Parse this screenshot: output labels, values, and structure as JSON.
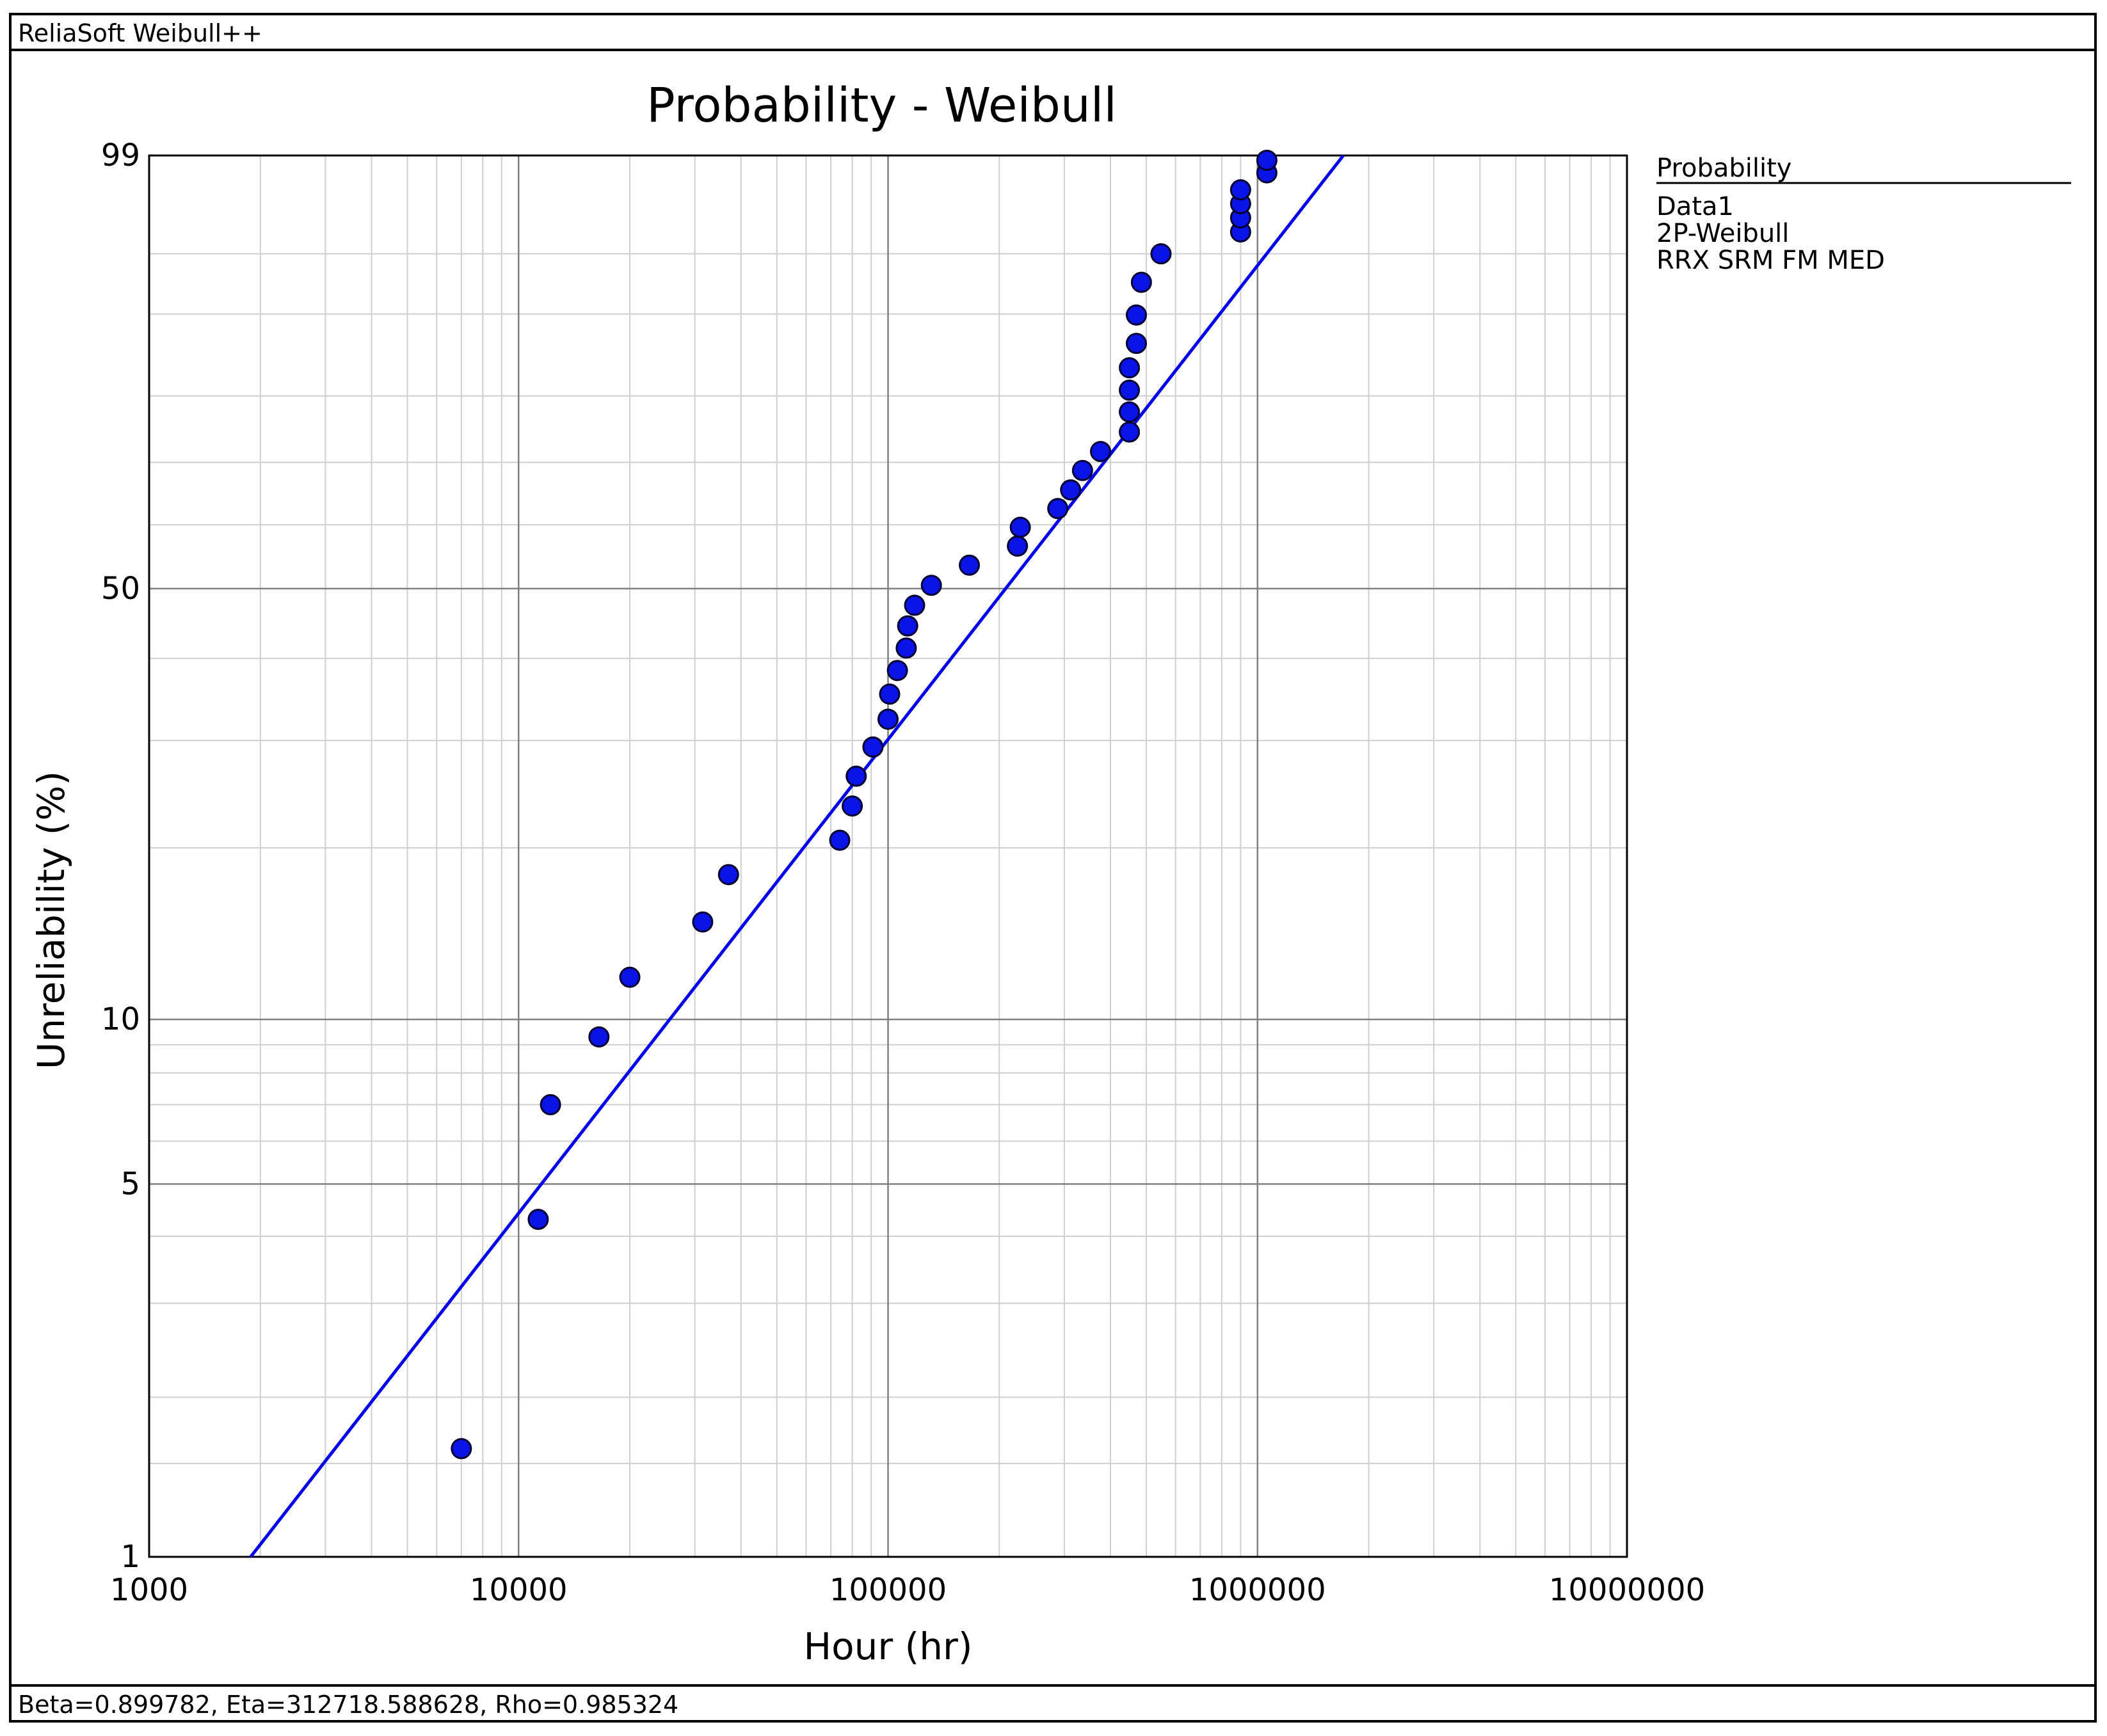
{
  "window": {
    "title": "ReliaSoft Weibull++",
    "status": "Beta=0.899782, Eta=312718.588628, Rho=0.985324"
  },
  "legend": {
    "title": "Probability",
    "items": [
      "Data1",
      "2P-Weibull",
      "RRX SRM FM MED"
    ]
  },
  "colors": {
    "series": "#0000ee",
    "point_fill": "#0a14e6",
    "point_stroke": "#000033",
    "major_grid": "#808080",
    "minor_grid": "#cfcfcf"
  },
  "chart_data": {
    "type": "scatter",
    "title": "Probability - Weibull",
    "xlabel": "Hour (hr)",
    "ylabel": "Unreliability (%)",
    "x_scale": "log",
    "y_scale": "weibull",
    "xlim": [
      1000,
      10000000
    ],
    "ylim": [
      1,
      99
    ],
    "x_ticks": [
      1000,
      10000,
      100000,
      1000000,
      10000000
    ],
    "x_tick_labels": [
      "1000",
      "10000",
      "100000",
      "1000000",
      "10000000"
    ],
    "y_ticks": [
      1,
      5,
      10,
      50,
      99
    ],
    "y_tick_labels": [
      "1",
      "5",
      "10",
      "50",
      "99"
    ],
    "grid": true,
    "legend_position": "right",
    "series": [
      {
        "type": "scatter",
        "points": [
          [
            7000,
            1.6
          ],
          [
            11300,
            4.3
          ],
          [
            12200,
            7.0
          ],
          [
            16500,
            9.3
          ],
          [
            20000,
            11.9
          ],
          [
            31500,
            14.9
          ],
          [
            37000,
            18.0
          ],
          [
            74000,
            20.6
          ],
          [
            80000,
            23.5
          ],
          [
            82000,
            26.3
          ],
          [
            91000,
            29.3
          ],
          [
            100000,
            32.4
          ],
          [
            101000,
            35.4
          ],
          [
            106000,
            38.4
          ],
          [
            112000,
            41.4
          ],
          [
            113000,
            44.5
          ],
          [
            118000,
            47.5
          ],
          [
            131000,
            50.5
          ],
          [
            166000,
            53.6
          ],
          [
            224000,
            56.6
          ],
          [
            228000,
            59.6
          ],
          [
            288000,
            62.6
          ],
          [
            312000,
            65.6
          ],
          [
            336000,
            68.7
          ],
          [
            376000,
            71.7
          ],
          [
            450000,
            74.7
          ],
          [
            450000,
            77.7
          ],
          [
            450000,
            80.8
          ],
          [
            450000,
            83.8
          ],
          [
            470000,
            86.8
          ],
          [
            470000,
            89.9
          ],
          [
            485000,
            92.9
          ],
          [
            548000,
            95.0
          ],
          [
            900000,
            96.3
          ],
          [
            900000,
            97.0
          ],
          [
            900000,
            97.6
          ],
          [
            900000,
            98.1
          ],
          [
            1060000,
            98.6
          ],
          [
            1060000,
            98.9
          ]
        ]
      },
      {
        "type": "line",
        "beta": 0.899782,
        "eta": 312718.588628
      }
    ]
  }
}
